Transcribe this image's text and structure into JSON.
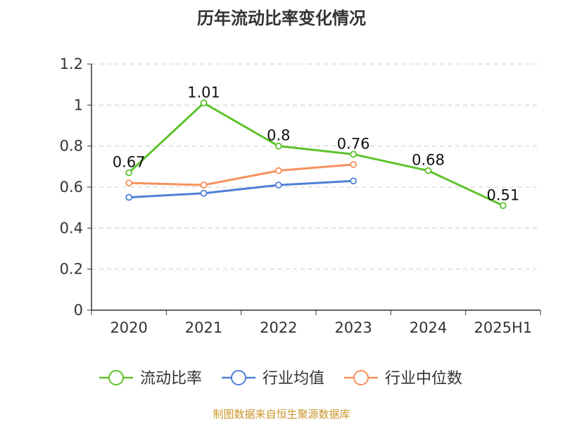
{
  "chart_data": {
    "type": "line",
    "title": "历年流动比率变化情况",
    "categories": [
      "2020",
      "2021",
      "2022",
      "2023",
      "2024",
      "2025H1"
    ],
    "ylim": [
      0,
      1.2
    ],
    "yticks": [
      "0",
      "0.2",
      "0.4",
      "0.6",
      "0.8",
      "1",
      "1.2"
    ],
    "grid": true,
    "legend_position": "bottom",
    "series": [
      {
        "name": "流动比率",
        "color": "#5ec22b",
        "values": [
          0.67,
          1.01,
          0.8,
          0.76,
          0.68,
          0.51
        ],
        "labels": [
          "0.67",
          "1.01",
          "0.8",
          "0.76",
          "0.68",
          "0.51"
        ]
      },
      {
        "name": "行业均值",
        "color": "#4f7fd6",
        "values": [
          0.55,
          0.57,
          0.61,
          0.63,
          null,
          null
        ]
      },
      {
        "name": "行业中位数",
        "color": "#f5915c",
        "values": [
          0.62,
          0.61,
          0.68,
          0.71,
          null,
          null
        ]
      }
    ]
  },
  "source_note": "制图数据来自恒生聚源数据库"
}
